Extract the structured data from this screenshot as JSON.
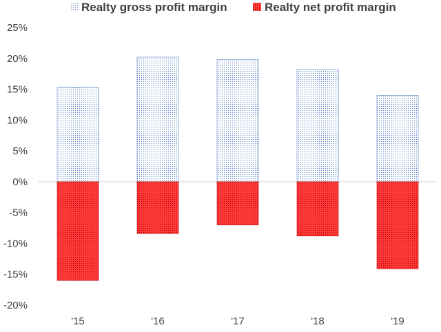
{
  "colors": {
    "gross_fill": "#ffffff",
    "gross_dots": "#5b7fc4",
    "net_fill": "#ff3b3b",
    "net_dots": "#c00000",
    "axis_text": "#404040",
    "zero_line": "#d9d9d9"
  },
  "chart_data": {
    "type": "bar",
    "stacked": true,
    "categories": [
      "'15",
      "'16",
      "'17",
      "'18",
      "'19"
    ],
    "series": [
      {
        "name": "Realty gross profit margin",
        "values": [
          15.3,
          20.2,
          19.8,
          18.2,
          14.0
        ]
      },
      {
        "name": "Realty net profit margin",
        "values": [
          -16.0,
          -8.4,
          -7.0,
          -8.8,
          -14.1
        ]
      }
    ],
    "yaxis": {
      "ylim": [
        -20,
        25
      ],
      "ticks": [
        25,
        20,
        15,
        10,
        5,
        0,
        -5,
        -10,
        -15,
        -20
      ],
      "tick_labels": [
        "25%",
        "20%",
        "15%",
        "10%",
        "5%",
        "0%",
        "-5%",
        "-10%",
        "-15%",
        "-20%"
      ]
    },
    "legend_position": "top",
    "grid": false
  }
}
